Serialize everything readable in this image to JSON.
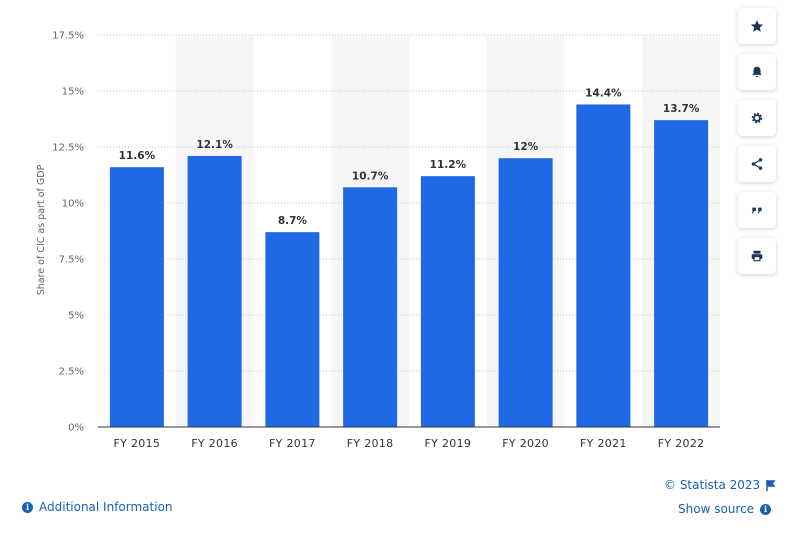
{
  "chart_data": {
    "type": "bar",
    "categories": [
      "FY 2015",
      "FY 2016",
      "FY 2017",
      "FY 2018",
      "FY 2019",
      "FY 2020",
      "FY 2021",
      "FY 2022"
    ],
    "values": [
      11.6,
      12.1,
      8.7,
      10.7,
      11.2,
      12,
      14.4,
      13.7
    ],
    "data_labels": [
      "11.6%",
      "12.1%",
      "8.7%",
      "10.7%",
      "11.2%",
      "12%",
      "14.4%",
      "13.7%"
    ],
    "title": "",
    "xlabel": "",
    "ylabel": "Share of CIC as part of GDP",
    "ylim": [
      0,
      17.5
    ],
    "yticks": [
      0,
      2.5,
      5,
      7.5,
      10,
      12.5,
      15,
      17.5
    ],
    "ytick_labels": [
      "0%",
      "2.5%",
      "5%",
      "7.5%",
      "10%",
      "12.5%",
      "15%",
      "17.5%"
    ],
    "grid": true,
    "bar_color": "#1f6ae4",
    "band_color": "#f6f6f6"
  },
  "toolbar": {
    "buttons": [
      {
        "name": "favorite-button",
        "icon": "star-icon"
      },
      {
        "name": "notification-button",
        "icon": "bell-icon"
      },
      {
        "name": "settings-button",
        "icon": "gear-icon"
      },
      {
        "name": "share-button",
        "icon": "share-icon"
      },
      {
        "name": "cite-button",
        "icon": "quote-icon"
      },
      {
        "name": "print-button",
        "icon": "print-icon"
      }
    ]
  },
  "footer": {
    "copyright": "© Statista 2023",
    "additional_info": "Additional Information",
    "show_source": "Show source",
    "link_color": "#1a5fb4"
  }
}
